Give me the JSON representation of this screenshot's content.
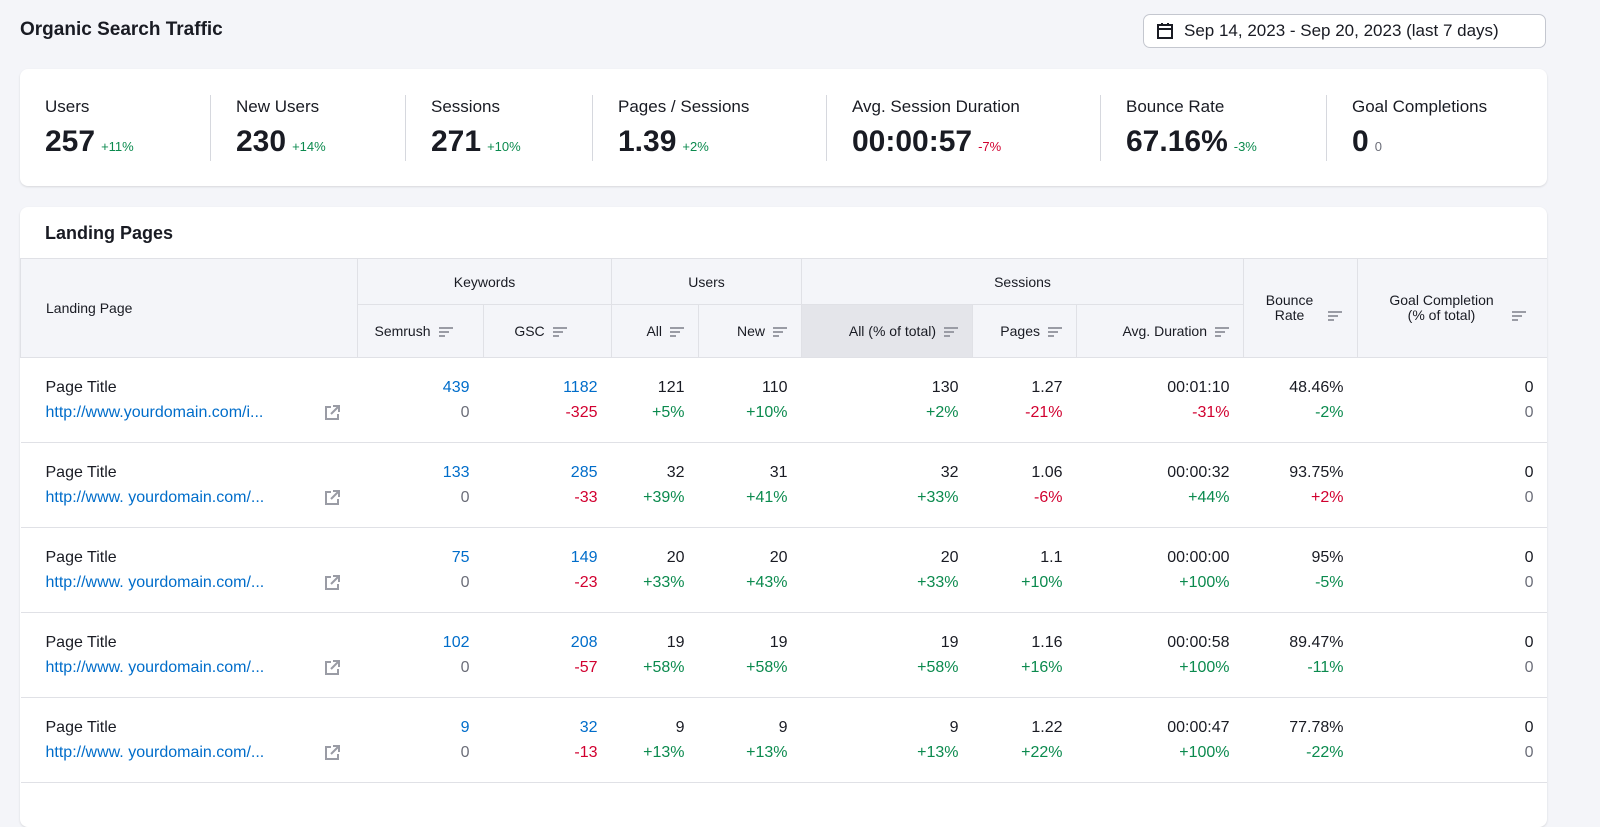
{
  "header": {
    "title": "Organic Search Traffic",
    "date_range": "Sep 14, 2023 - Sep 20, 2023 (last 7 days)"
  },
  "kpis": [
    {
      "label": "Users",
      "value": "257",
      "delta": "+11%",
      "trend": "g",
      "width": 190
    },
    {
      "label": "New Users",
      "value": "230",
      "delta": "+14%",
      "trend": "g",
      "width": 195
    },
    {
      "label": "Sessions",
      "value": "271",
      "delta": "+10%",
      "trend": "g",
      "width": 187
    },
    {
      "label": "Pages / Sessions",
      "value": "1.39",
      "delta": "+2%",
      "trend": "g",
      "width": 234
    },
    {
      "label": "Avg. Session Duration",
      "value": "00:00:57",
      "delta": "-7%",
      "trend": "r",
      "width": 274
    },
    {
      "label": "Bounce Rate",
      "value": "67.16%",
      "delta": "-3%",
      "trend": "g",
      "width": 226
    },
    {
      "label": "Goal Completions",
      "value": "0",
      "delta": "0",
      "trend": "n",
      "width": 220
    }
  ],
  "table": {
    "title": "Landing Pages",
    "groups": {
      "landing": "Landing Page",
      "keywords": "Keywords",
      "users": "Users",
      "sessions": "Sessions",
      "bounce": "Bounce Rate",
      "goal": "Goal Completion (% of total)"
    },
    "subcols": [
      "Semrush",
      "GSC",
      "All",
      "New",
      "All (% of total)",
      "Pages",
      "Avg. Duration"
    ],
    "rows": [
      {
        "title": "Page Title",
        "url": "http://www.yourdomain.com/i...",
        "cells": [
          [
            "439",
            "0",
            "bl",
            "n"
          ],
          [
            "1182",
            "-325",
            "bl",
            "r"
          ],
          [
            "121",
            "+5%",
            "",
            "g"
          ],
          [
            "110",
            "+10%",
            "",
            "g"
          ],
          [
            "130",
            "+2%",
            "",
            "g"
          ],
          [
            "1.27",
            "-21%",
            "",
            "r"
          ],
          [
            "00:01:10",
            "-31%",
            "",
            "r"
          ],
          [
            "48.46%",
            "-2%",
            "",
            "g"
          ],
          [
            "0",
            "0",
            "",
            "n"
          ]
        ]
      },
      {
        "title": "Page Title",
        "url": "http://www. yourdomain.com/...",
        "cells": [
          [
            "133",
            "0",
            "bl",
            "n"
          ],
          [
            "285",
            "-33",
            "bl",
            "r"
          ],
          [
            "32",
            "+39%",
            "",
            "g"
          ],
          [
            "31",
            "+41%",
            "",
            "g"
          ],
          [
            "32",
            "+33%",
            "",
            "g"
          ],
          [
            "1.06",
            "-6%",
            "",
            "r"
          ],
          [
            "00:00:32",
            "+44%",
            "",
            "g"
          ],
          [
            "93.75%",
            "+2%",
            "",
            "r"
          ],
          [
            "0",
            "0",
            "",
            "n"
          ]
        ]
      },
      {
        "title": "Page Title",
        "url": "http://www. yourdomain.com/...",
        "cells": [
          [
            "75",
            "0",
            "bl",
            "n"
          ],
          [
            "149",
            "-23",
            "bl",
            "r"
          ],
          [
            "20",
            "+33%",
            "",
            "g"
          ],
          [
            "20",
            "+43%",
            "",
            "g"
          ],
          [
            "20",
            "+33%",
            "",
            "g"
          ],
          [
            "1.1",
            "+10%",
            "",
            "g"
          ],
          [
            "00:00:00",
            "+100%",
            "",
            "g"
          ],
          [
            "95%",
            "-5%",
            "",
            "g"
          ],
          [
            "0",
            "0",
            "",
            "n"
          ]
        ]
      },
      {
        "title": "Page Title",
        "url": "http://www. yourdomain.com/...",
        "cells": [
          [
            "102",
            "0",
            "bl",
            "n"
          ],
          [
            "208",
            "-57",
            "bl",
            "r"
          ],
          [
            "19",
            "+58%",
            "",
            "g"
          ],
          [
            "19",
            "+58%",
            "",
            "g"
          ],
          [
            "19",
            "+58%",
            "",
            "g"
          ],
          [
            "1.16",
            "+16%",
            "",
            "g"
          ],
          [
            "00:00:58",
            "+100%",
            "",
            "g"
          ],
          [
            "89.47%",
            "-11%",
            "",
            "g"
          ],
          [
            "0",
            "0",
            "",
            "n"
          ]
        ]
      },
      {
        "title": "Page Title",
        "url": "http://www. yourdomain.com/...",
        "cells": [
          [
            "9",
            "0",
            "bl",
            "n"
          ],
          [
            "32",
            "-13",
            "bl",
            "r"
          ],
          [
            "9",
            "+13%",
            "",
            "g"
          ],
          [
            "9",
            "+13%",
            "",
            "g"
          ],
          [
            "9",
            "+13%",
            "",
            "g"
          ],
          [
            "1.22",
            "+22%",
            "",
            "g"
          ],
          [
            "00:00:47",
            "+100%",
            "",
            "g"
          ],
          [
            "77.78%",
            "-22%",
            "",
            "g"
          ],
          [
            "0",
            "0",
            "",
            "n"
          ]
        ]
      }
    ]
  },
  "colors": {
    "positive": "#0b8a4e",
    "negative": "#d1002f",
    "link": "#006dca"
  }
}
